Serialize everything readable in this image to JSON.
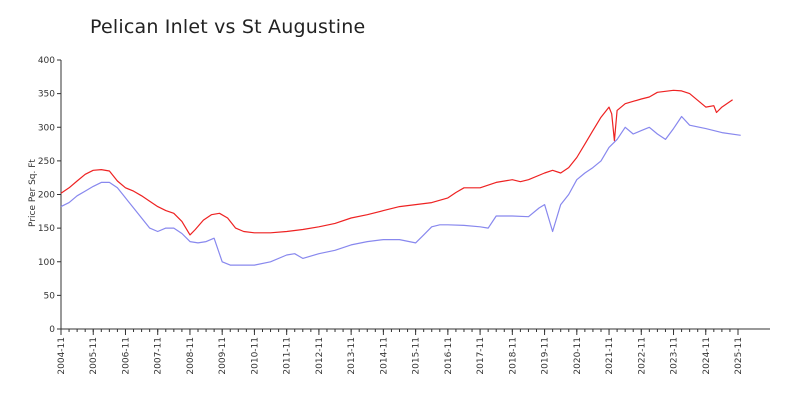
{
  "chart_data": {
    "type": "line",
    "title": "Pelican Inlet vs St Augustine",
    "ylabel": "Price Per Sq. Ft",
    "xlabel": "",
    "ylim": [
      0,
      400
    ],
    "yticks": [
      0,
      50,
      100,
      150,
      200,
      250,
      300,
      350,
      400
    ],
    "xlim": [
      "2004-11",
      "2025-12"
    ],
    "xticks": [
      "2004-11",
      "2005-11",
      "2006-11",
      "2007-11",
      "2008-11",
      "2009-11",
      "2010-11",
      "2011-11",
      "2012-11",
      "2013-11",
      "2014-11",
      "2015-11",
      "2016-11",
      "2017-11",
      "2018-11",
      "2019-11",
      "2020-11",
      "2021-11",
      "2022-11",
      "2023-11",
      "2024-11",
      "2025-11"
    ],
    "grid": false,
    "legend": "none",
    "series": [
      {
        "color": "#ee2222",
        "x": [
          "2004-11",
          "2005-02",
          "2005-05",
          "2005-08",
          "2005-11",
          "2006-02",
          "2006-05",
          "2006-08",
          "2006-11",
          "2007-02",
          "2007-05",
          "2007-08",
          "2007-11",
          "2008-02",
          "2008-05",
          "2008-08",
          "2008-11",
          "2009-01",
          "2009-04",
          "2009-07",
          "2009-10",
          "2010-01",
          "2010-04",
          "2010-07",
          "2010-11",
          "2011-05",
          "2011-11",
          "2012-05",
          "2012-11",
          "2013-05",
          "2013-11",
          "2014-05",
          "2014-11",
          "2015-05",
          "2015-11",
          "2016-05",
          "2016-11",
          "2017-02",
          "2017-05",
          "2017-11",
          "2018-05",
          "2018-11",
          "2019-02",
          "2019-05",
          "2019-11",
          "2020-02",
          "2020-05",
          "2020-08",
          "2020-11",
          "2021-02",
          "2021-05",
          "2021-08",
          "2021-11",
          "2021-12",
          "2022-01",
          "2022-02",
          "2022-05",
          "2022-11",
          "2023-02",
          "2023-05",
          "2023-11",
          "2024-02",
          "2024-05",
          "2024-08",
          "2024-11",
          "2025-02",
          "2025-03",
          "2025-05",
          "2025-09"
        ],
        "y": [
          202,
          210,
          220,
          230,
          236,
          237,
          235,
          220,
          210,
          205,
          198,
          190,
          182,
          176,
          172,
          160,
          140,
          148,
          162,
          170,
          172,
          165,
          150,
          145,
          143,
          143,
          145,
          148,
          152,
          157,
          165,
          170,
          176,
          182,
          185,
          188,
          195,
          203,
          210,
          210,
          218,
          222,
          219,
          222,
          232,
          236,
          232,
          240,
          255,
          275,
          295,
          315,
          330,
          320,
          280,
          325,
          335,
          342,
          345,
          352,
          355,
          354,
          350,
          340,
          330,
          332,
          322,
          330,
          341
        ]
      },
      {
        "color": "#8888ee",
        "x": [
          "2004-11",
          "2005-02",
          "2005-05",
          "2005-08",
          "2005-11",
          "2006-02",
          "2006-05",
          "2006-08",
          "2006-11",
          "2007-02",
          "2007-05",
          "2007-08",
          "2007-11",
          "2008-02",
          "2008-05",
          "2008-08",
          "2008-11",
          "2009-02",
          "2009-05",
          "2009-08",
          "2009-11",
          "2010-02",
          "2010-05",
          "2010-11",
          "2011-05",
          "2011-11",
          "2012-02",
          "2012-05",
          "2012-11",
          "2013-05",
          "2013-11",
          "2014-05",
          "2014-11",
          "2015-05",
          "2015-11",
          "2016-02",
          "2016-05",
          "2016-08",
          "2016-11",
          "2017-05",
          "2017-11",
          "2018-02",
          "2018-05",
          "2018-11",
          "2019-05",
          "2019-09",
          "2019-11",
          "2020-02",
          "2020-05",
          "2020-08",
          "2020-11",
          "2021-02",
          "2021-05",
          "2021-08",
          "2021-11",
          "2022-02",
          "2022-05",
          "2022-08",
          "2022-11",
          "2023-02",
          "2023-05",
          "2023-08",
          "2023-11",
          "2024-02",
          "2024-05",
          "2024-11",
          "2025-05",
          "2025-12"
        ],
        "y": [
          182,
          188,
          198,
          205,
          212,
          218,
          218,
          210,
          195,
          180,
          165,
          150,
          145,
          150,
          150,
          142,
          130,
          128,
          130,
          135,
          100,
          95,
          95,
          95,
          100,
          110,
          112,
          105,
          112,
          117,
          125,
          130,
          133,
          133,
          128,
          140,
          152,
          155,
          155,
          154,
          152,
          150,
          168,
          168,
          167,
          180,
          185,
          145,
          185,
          200,
          222,
          232,
          240,
          250,
          270,
          282,
          300,
          290,
          295,
          300,
          290,
          282,
          298,
          316,
          303,
          298,
          292,
          288
        ]
      }
    ]
  }
}
